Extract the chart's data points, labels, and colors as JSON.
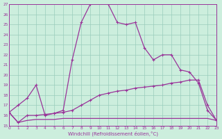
{
  "xlabel": "Windchill (Refroidissement éolien,°C)",
  "hours": [
    0,
    1,
    2,
    3,
    4,
    5,
    6,
    7,
    8,
    9,
    10,
    11,
    12,
    13,
    14,
    15,
    16,
    17,
    18,
    19,
    20,
    21,
    22,
    23
  ],
  "line1": [
    16.3,
    17.0,
    17.7,
    19.0,
    16.0,
    16.2,
    16.5,
    21.5,
    25.2,
    27.0,
    27.3,
    27.0,
    25.2,
    25.0,
    25.2,
    22.7,
    21.5,
    22.0,
    22.0,
    20.5,
    20.3,
    19.2,
    16.5,
    15.5
  ],
  "line2": [
    16.3,
    15.3,
    16.0,
    16.0,
    16.1,
    16.2,
    16.3,
    16.5,
    17.0,
    17.5,
    18.0,
    18.2,
    18.4,
    18.5,
    18.7,
    18.8,
    18.9,
    19.0,
    19.2,
    19.3,
    19.5,
    19.5,
    17.0,
    15.5
  ],
  "line3": [
    16.3,
    15.3,
    15.5,
    15.6,
    15.6,
    15.6,
    15.7,
    15.7,
    15.7,
    15.7,
    15.7,
    15.7,
    15.7,
    15.7,
    15.7,
    15.7,
    15.7,
    15.7,
    15.7,
    15.7,
    15.7,
    15.7,
    15.7,
    15.5
  ],
  "line1_markers": true,
  "line2_markers": true,
  "line3_markers": false,
  "color": "#993399",
  "bg_color": "#cceedd",
  "grid_color": "#99ccbb",
  "ylim": [
    15,
    27
  ],
  "yticks": [
    15,
    16,
    17,
    18,
    19,
    20,
    21,
    22,
    23,
    24,
    25,
    26,
    27
  ],
  "xticks": [
    0,
    1,
    2,
    3,
    4,
    5,
    6,
    7,
    8,
    9,
    10,
    11,
    12,
    13,
    14,
    15,
    16,
    17,
    18,
    19,
    20,
    21,
    22,
    23
  ]
}
